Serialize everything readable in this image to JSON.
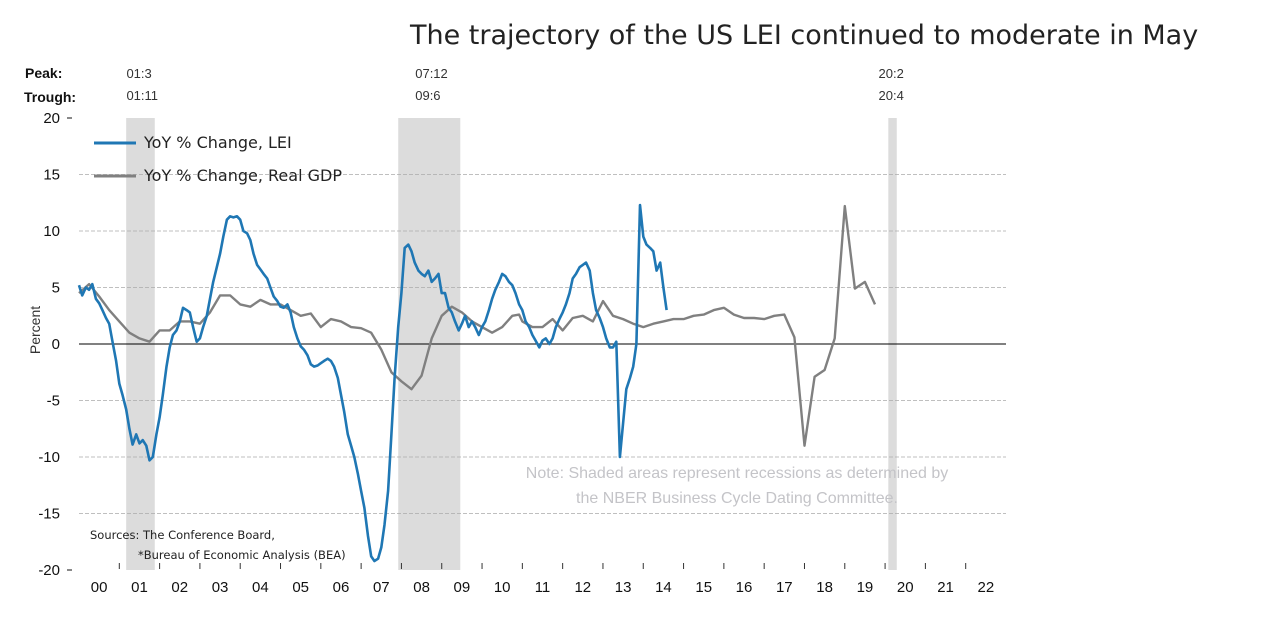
{
  "title": "The trajectory of the US LEI continued to moderate in May",
  "chart_data": {
    "type": "line",
    "title": "The trajectory of the US LEI continued to moderate in May",
    "xlabel": "",
    "ylabel": "Percent",
    "ylim": [
      -20,
      20
    ],
    "xlim": [
      2000.0,
      2023.0
    ],
    "yticks": [
      20,
      15,
      10,
      5,
      0,
      -5,
      -10,
      -15,
      -20
    ],
    "ytick_labels": [
      "20 -",
      "15",
      "10",
      "5",
      "0",
      "-5",
      "-10",
      "-15",
      "-20 -"
    ],
    "xtick_labels": [
      "00",
      "01",
      "02",
      "03",
      "04",
      "05",
      "06",
      "07",
      "08",
      "09",
      "10",
      "11",
      "12",
      "13",
      "14",
      "15",
      "16",
      "17",
      "18",
      "19",
      "20",
      "21",
      "22"
    ],
    "grid": "horizontal-dashed",
    "legend_placement": "top-left",
    "legend": [
      "YoY % Change, LEI",
      "YoY % Change, Real GDP"
    ],
    "recession_header": {
      "peak_label": "Peak:",
      "trough_label": "Trough:"
    },
    "recessions": [
      {
        "peak": "01:3",
        "trough": "01:11",
        "start": 2001.17,
        "end": 2001.88
      },
      {
        "peak": "07:12",
        "trough": "09:6",
        "start": 2007.92,
        "end": 2009.46
      },
      {
        "peak": "20:2",
        "trough": "20:4",
        "start": 2020.08,
        "end": 2020.29
      }
    ],
    "series": [
      {
        "name": "YoY % Change, LEI",
        "color": "#1f77b4",
        "points": [
          [
            2000.0,
            5.2
          ],
          [
            2000.08,
            4.3
          ],
          [
            2000.17,
            5.0
          ],
          [
            2000.25,
            4.8
          ],
          [
            2000.33,
            5.3
          ],
          [
            2000.42,
            4.0
          ],
          [
            2000.5,
            3.6
          ],
          [
            2000.58,
            3.0
          ],
          [
            2000.67,
            2.3
          ],
          [
            2000.75,
            1.8
          ],
          [
            2000.83,
            0.2
          ],
          [
            2000.92,
            -1.5
          ],
          [
            2001.0,
            -3.5
          ],
          [
            2001.08,
            -4.5
          ],
          [
            2001.17,
            -5.8
          ],
          [
            2001.25,
            -7.5
          ],
          [
            2001.33,
            -8.9
          ],
          [
            2001.42,
            -8.0
          ],
          [
            2001.5,
            -8.8
          ],
          [
            2001.58,
            -8.5
          ],
          [
            2001.67,
            -9.0
          ],
          [
            2001.75,
            -10.3
          ],
          [
            2001.83,
            -10.0
          ],
          [
            2001.92,
            -8.0
          ],
          [
            2002.0,
            -6.5
          ],
          [
            2002.08,
            -4.5
          ],
          [
            2002.17,
            -2.0
          ],
          [
            2002.25,
            -0.3
          ],
          [
            2002.33,
            0.8
          ],
          [
            2002.42,
            1.2
          ],
          [
            2002.5,
            2.0
          ],
          [
            2002.58,
            3.2
          ],
          [
            2002.67,
            3.0
          ],
          [
            2002.75,
            2.8
          ],
          [
            2002.83,
            1.5
          ],
          [
            2002.92,
            0.2
          ],
          [
            2003.0,
            0.5
          ],
          [
            2003.08,
            1.5
          ],
          [
            2003.17,
            2.5
          ],
          [
            2003.25,
            4.0
          ],
          [
            2003.33,
            5.5
          ],
          [
            2003.42,
            6.8
          ],
          [
            2003.5,
            8.0
          ],
          [
            2003.58,
            9.5
          ],
          [
            2003.67,
            11.0
          ],
          [
            2003.75,
            11.3
          ],
          [
            2003.83,
            11.2
          ],
          [
            2003.92,
            11.3
          ],
          [
            2004.0,
            11.0
          ],
          [
            2004.08,
            10.0
          ],
          [
            2004.17,
            9.8
          ],
          [
            2004.25,
            9.2
          ],
          [
            2004.33,
            8.0
          ],
          [
            2004.42,
            7.0
          ],
          [
            2004.5,
            6.6
          ],
          [
            2004.58,
            6.2
          ],
          [
            2004.67,
            5.8
          ],
          [
            2004.75,
            5.0
          ],
          [
            2004.83,
            4.2
          ],
          [
            2004.92,
            3.8
          ],
          [
            2005.0,
            3.3
          ],
          [
            2005.08,
            3.2
          ],
          [
            2005.17,
            3.5
          ],
          [
            2005.25,
            2.8
          ],
          [
            2005.33,
            1.5
          ],
          [
            2005.42,
            0.5
          ],
          [
            2005.5,
            -0.2
          ],
          [
            2005.58,
            -0.5
          ],
          [
            2005.67,
            -1.0
          ],
          [
            2005.75,
            -1.8
          ],
          [
            2005.83,
            -2.0
          ],
          [
            2005.92,
            -1.9
          ],
          [
            2006.0,
            -1.7
          ],
          [
            2006.08,
            -1.5
          ],
          [
            2006.17,
            -1.3
          ],
          [
            2006.25,
            -1.5
          ],
          [
            2006.33,
            -2.0
          ],
          [
            2006.42,
            -3.0
          ],
          [
            2006.5,
            -4.5
          ],
          [
            2006.58,
            -6.0
          ],
          [
            2006.67,
            -8.0
          ],
          [
            2006.75,
            -9.0
          ],
          [
            2006.83,
            -10.0
          ],
          [
            2006.92,
            -11.5
          ],
          [
            2007.0,
            -13.0
          ],
          [
            2007.08,
            -14.5
          ],
          [
            2007.17,
            -17.0
          ],
          [
            2007.25,
            -18.8
          ],
          [
            2007.33,
            -19.2
          ],
          [
            2007.42,
            -19.0
          ],
          [
            2007.5,
            -18.0
          ],
          [
            2007.58,
            -16.0
          ],
          [
            2007.67,
            -13.0
          ],
          [
            2007.75,
            -8.0
          ],
          [
            2007.83,
            -3.0
          ],
          [
            2007.92,
            1.5
          ],
          [
            2008.0,
            4.5
          ],
          [
            2008.08,
            8.5
          ],
          [
            2008.17,
            8.8
          ],
          [
            2008.25,
            8.2
          ],
          [
            2008.33,
            7.2
          ],
          [
            2008.42,
            6.5
          ],
          [
            2008.5,
            6.2
          ],
          [
            2008.58,
            6.0
          ],
          [
            2008.67,
            6.5
          ],
          [
            2008.75,
            5.5
          ],
          [
            2008.83,
            5.8
          ],
          [
            2008.92,
            6.2
          ],
          [
            2009.0,
            4.5
          ],
          [
            2009.08,
            4.5
          ],
          [
            2009.17,
            3.2
          ],
          [
            2009.25,
            2.8
          ],
          [
            2009.33,
            2.0
          ],
          [
            2009.42,
            1.2
          ],
          [
            2009.5,
            1.8
          ],
          [
            2009.58,
            2.5
          ],
          [
            2009.67,
            1.5
          ],
          [
            2009.75,
            2.0
          ],
          [
            2009.83,
            1.5
          ],
          [
            2009.92,
            0.8
          ],
          [
            2010.0,
            1.5
          ],
          [
            2010.08,
            2.0
          ],
          [
            2010.17,
            3.0
          ],
          [
            2010.25,
            4.0
          ],
          [
            2010.33,
            4.8
          ],
          [
            2010.42,
            5.5
          ],
          [
            2010.5,
            6.2
          ],
          [
            2010.58,
            6.0
          ],
          [
            2010.67,
            5.5
          ],
          [
            2010.75,
            5.2
          ],
          [
            2010.83,
            4.5
          ],
          [
            2010.92,
            3.5
          ],
          [
            2011.0,
            3.0
          ],
          [
            2011.08,
            2.0
          ],
          [
            2011.17,
            1.5
          ],
          [
            2011.25,
            0.8
          ],
          [
            2011.33,
            0.3
          ],
          [
            2011.42,
            -0.3
          ],
          [
            2011.5,
            0.3
          ],
          [
            2011.58,
            0.5
          ],
          [
            2011.67,
            0.0
          ],
          [
            2011.75,
            0.5
          ],
          [
            2011.83,
            1.5
          ],
          [
            2011.92,
            2.2
          ],
          [
            2012.0,
            2.8
          ],
          [
            2012.08,
            3.5
          ],
          [
            2012.17,
            4.5
          ],
          [
            2012.25,
            5.8
          ],
          [
            2012.33,
            6.2
          ],
          [
            2012.42,
            6.8
          ],
          [
            2012.5,
            7.0
          ],
          [
            2012.58,
            7.2
          ],
          [
            2012.67,
            6.5
          ],
          [
            2012.75,
            4.5
          ],
          [
            2012.83,
            3.0
          ],
          [
            2012.92,
            2.3
          ],
          [
            2013.0,
            1.5
          ],
          [
            2013.08,
            0.5
          ],
          [
            2013.17,
            -0.3
          ],
          [
            2013.25,
            -0.3
          ],
          [
            2013.33,
            0.2
          ],
          [
            2013.42,
            -10.0
          ],
          [
            2013.5,
            -7.0
          ],
          [
            2013.58,
            -4.0
          ],
          [
            2013.67,
            -3.0
          ],
          [
            2013.75,
            -2.0
          ],
          [
            2013.83,
            0.0
          ],
          [
            2013.92,
            12.3
          ],
          [
            2014.0,
            9.5
          ],
          [
            2014.08,
            8.8
          ],
          [
            2014.17,
            8.5
          ],
          [
            2014.25,
            8.2
          ],
          [
            2014.33,
            6.5
          ],
          [
            2014.42,
            7.2
          ],
          [
            2014.5,
            5.0
          ],
          [
            2014.58,
            3.0
          ]
        ]
      },
      {
        "name": "YoY % Change, Real GDP",
        "color": "#808080",
        "points": [
          [
            2000.0,
            4.5
          ],
          [
            2000.25,
            5.3
          ],
          [
            2000.5,
            4.2
          ],
          [
            2000.75,
            3.0
          ],
          [
            2001.0,
            2.0
          ],
          [
            2001.25,
            1.0
          ],
          [
            2001.5,
            0.5
          ],
          [
            2001.75,
            0.2
          ],
          [
            2002.0,
            1.2
          ],
          [
            2002.25,
            1.2
          ],
          [
            2002.5,
            2.0
          ],
          [
            2002.75,
            2.0
          ],
          [
            2003.0,
            1.8
          ],
          [
            2003.25,
            2.8
          ],
          [
            2003.5,
            4.3
          ],
          [
            2003.75,
            4.3
          ],
          [
            2004.0,
            3.5
          ],
          [
            2004.25,
            3.3
          ],
          [
            2004.5,
            3.9
          ],
          [
            2004.75,
            3.5
          ],
          [
            2005.0,
            3.5
          ],
          [
            2005.25,
            3.0
          ],
          [
            2005.5,
            2.5
          ],
          [
            2005.75,
            2.7
          ],
          [
            2006.0,
            1.5
          ],
          [
            2006.25,
            2.2
          ],
          [
            2006.5,
            2.0
          ],
          [
            2006.75,
            1.5
          ],
          [
            2007.0,
            1.4
          ],
          [
            2007.25,
            1.0
          ],
          [
            2007.5,
            -0.5
          ],
          [
            2007.75,
            -2.5
          ],
          [
            2008.0,
            -3.3
          ],
          [
            2008.25,
            -4.0
          ],
          [
            2008.5,
            -2.8
          ],
          [
            2008.75,
            0.5
          ],
          [
            2009.0,
            2.5
          ],
          [
            2009.25,
            3.3
          ],
          [
            2009.5,
            2.8
          ],
          [
            2009.75,
            2.0
          ],
          [
            2010.0,
            1.5
          ],
          [
            2010.25,
            1.0
          ],
          [
            2010.5,
            1.5
          ],
          [
            2010.75,
            2.5
          ],
          [
            2010.92,
            2.6
          ],
          [
            2011.0,
            2.0
          ],
          [
            2011.25,
            1.5
          ],
          [
            2011.5,
            1.5
          ],
          [
            2011.75,
            2.2
          ],
          [
            2012.0,
            1.2
          ],
          [
            2012.25,
            2.3
          ],
          [
            2012.5,
            2.5
          ],
          [
            2012.75,
            2.0
          ],
          [
            2013.0,
            3.8
          ],
          [
            2013.25,
            2.5
          ],
          [
            2013.5,
            2.2
          ],
          [
            2013.75,
            1.8
          ],
          [
            2014.0,
            1.5
          ],
          [
            2014.25,
            1.8
          ],
          [
            2014.5,
            2.0
          ],
          [
            2014.75,
            2.2
          ],
          [
            2015.0,
            2.2
          ],
          [
            2015.25,
            2.5
          ],
          [
            2015.5,
            2.6
          ],
          [
            2015.75,
            3.0
          ],
          [
            2016.0,
            3.2
          ],
          [
            2016.25,
            2.6
          ],
          [
            2016.5,
            2.3
          ],
          [
            2016.75,
            2.3
          ],
          [
            2017.0,
            2.2
          ],
          [
            2017.25,
            2.5
          ],
          [
            2017.5,
            2.6
          ],
          [
            2017.75,
            0.6
          ],
          [
            2018.0,
            -9.0
          ],
          [
            2018.25,
            -2.9
          ],
          [
            2018.5,
            -2.3
          ],
          [
            2018.75,
            0.5
          ],
          [
            2019.0,
            12.2
          ],
          [
            2019.25,
            4.9
          ],
          [
            2019.5,
            5.5
          ],
          [
            2019.75,
            3.5
          ]
        ]
      }
    ],
    "note": "Note: Shaded areas represent recessions as determined by the NBER Business Cycle Dating Committee.",
    "sources": [
      "Sources: The Conference Board,",
      "*Bureau of Economic Analysis (BEA)"
    ]
  }
}
